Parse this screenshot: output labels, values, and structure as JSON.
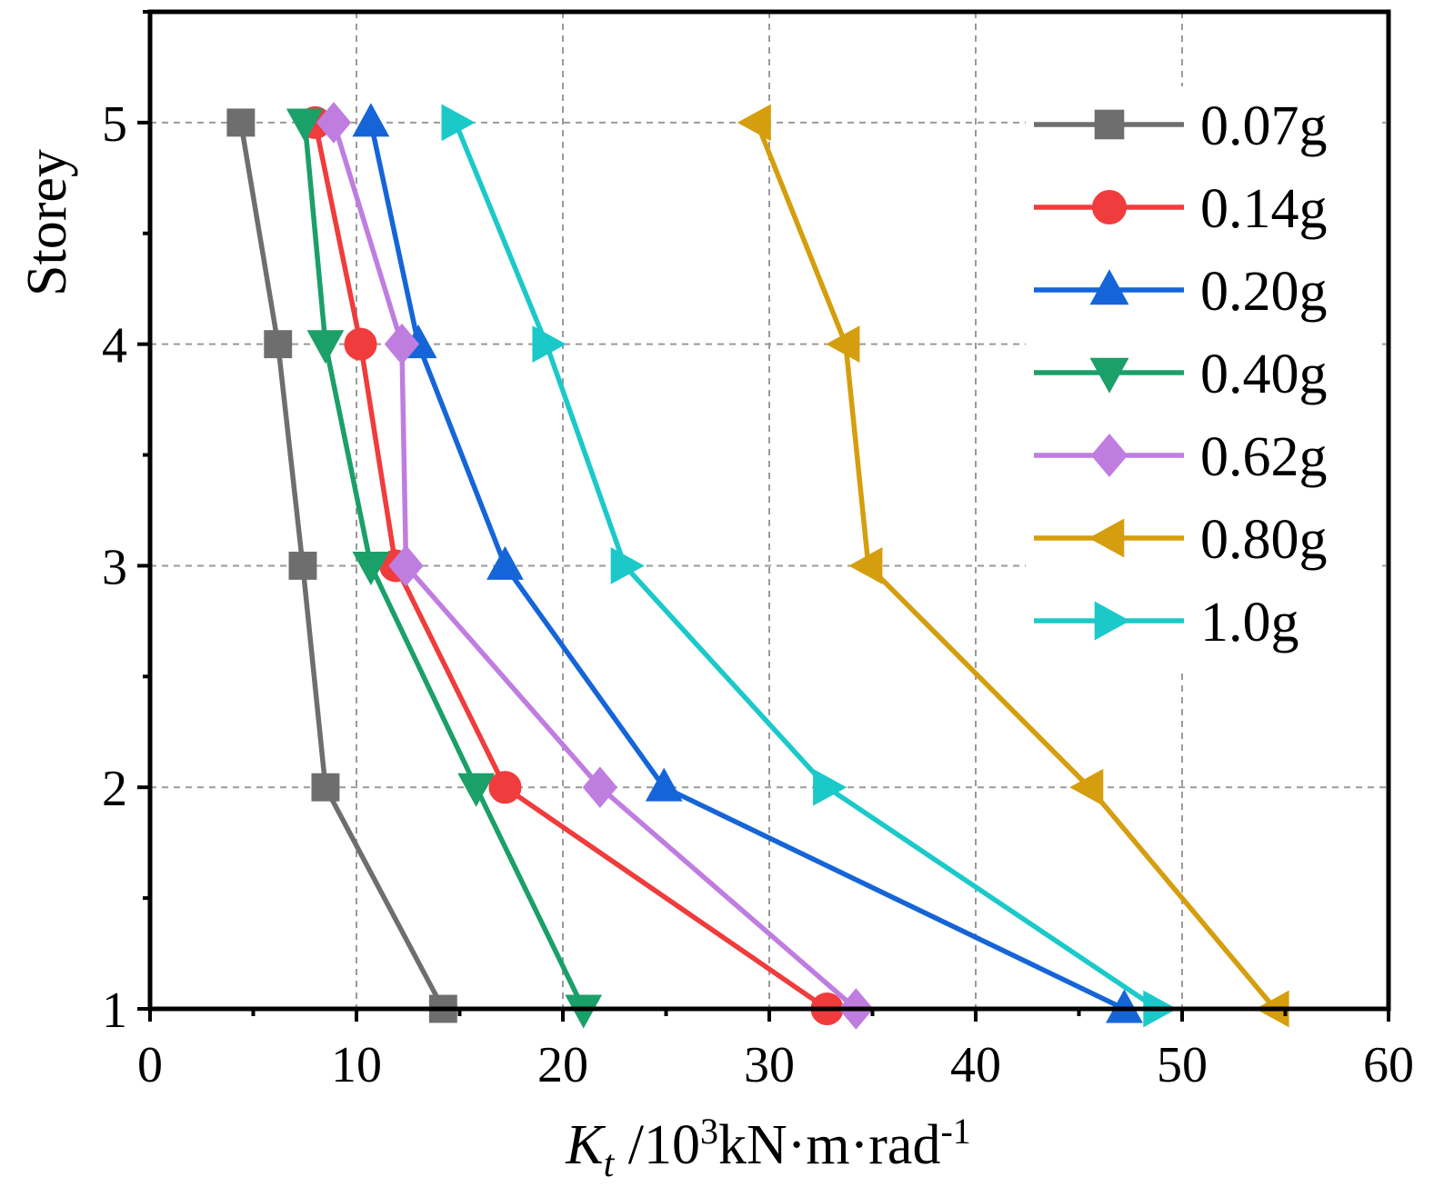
{
  "chart_data": {
    "type": "line",
    "xlabel": {
      "main": "K",
      "sub": "t",
      "middle": " /10",
      "sup": "3",
      "rest": "kN·m·rad",
      "sup2": "-1"
    },
    "ylabel": "Storey",
    "xlim": [
      0,
      60
    ],
    "ylim": [
      1,
      5.5
    ],
    "x_ticks": [
      "0",
      "10",
      "20",
      "30",
      "40",
      "50",
      "60"
    ],
    "y_ticks": [
      "1",
      "2",
      "3",
      "4",
      "5"
    ],
    "grid": true,
    "legend_position": "top-right",
    "series": [
      {
        "name": "0.07g",
        "color": "#6e6e6e",
        "marker": "square",
        "points": [
          [
            14.2,
            1
          ],
          [
            8.5,
            2
          ],
          [
            7.4,
            3
          ],
          [
            6.2,
            4
          ],
          [
            4.4,
            5
          ]
        ]
      },
      {
        "name": "0.14g",
        "color": "#f03c3c",
        "marker": "circle",
        "points": [
          [
            32.8,
            1
          ],
          [
            17.2,
            2
          ],
          [
            11.9,
            3
          ],
          [
            10.2,
            4
          ],
          [
            8.0,
            5
          ]
        ]
      },
      {
        "name": "0.20g",
        "color": "#1565d8",
        "marker": "triangle-up",
        "points": [
          [
            47.2,
            1
          ],
          [
            24.9,
            2
          ],
          [
            17.2,
            3
          ],
          [
            13.0,
            4
          ],
          [
            10.7,
            5
          ]
        ]
      },
      {
        "name": "0.40g",
        "color": "#1aa068",
        "marker": "triangle-down",
        "points": [
          [
            21.0,
            1
          ],
          [
            15.8,
            2
          ],
          [
            10.7,
            3
          ],
          [
            8.5,
            4
          ],
          [
            7.5,
            5
          ]
        ]
      },
      {
        "name": "0.62g",
        "color": "#c07de0",
        "marker": "diamond",
        "points": [
          [
            34.2,
            1
          ],
          [
            21.8,
            2
          ],
          [
            12.4,
            3
          ],
          [
            12.2,
            4
          ],
          [
            8.9,
            5
          ]
        ]
      },
      {
        "name": "0.80g",
        "color": "#d59e0e",
        "marker": "triangle-left",
        "points": [
          [
            54.5,
            1
          ],
          [
            45.5,
            2
          ],
          [
            34.8,
            3
          ],
          [
            33.7,
            4
          ],
          [
            29.4,
            5
          ]
        ]
      },
      {
        "name": "1.0g",
        "color": "#1cc9c9",
        "marker": "triangle-right",
        "points": [
          [
            48.8,
            1
          ],
          [
            32.8,
            2
          ],
          [
            23.0,
            3
          ],
          [
            19.2,
            4
          ],
          [
            14.8,
            5
          ]
        ]
      }
    ]
  }
}
